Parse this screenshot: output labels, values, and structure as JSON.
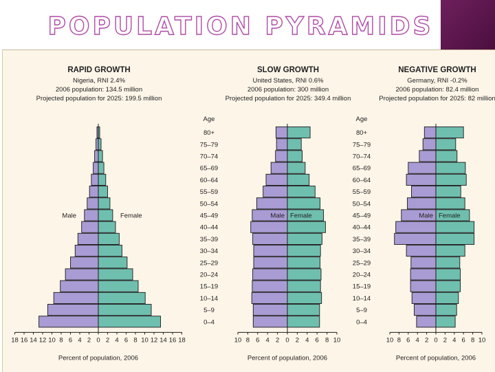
{
  "slide": {
    "title": "POPULATION PYRAMIDS",
    "colors": {
      "title_outline": "#b04ca6",
      "corner": "#5a1449",
      "background": "#fdf5e8"
    }
  },
  "chart_data": [
    {
      "type": "population-pyramid",
      "title": "RAPID GROWTH",
      "subtitle_lines": [
        "Nigeria, RNI 2.4%",
        "2006 population: 134.5 million",
        "Projected population for 2025: 199.5 million"
      ],
      "age_label": "Age",
      "age_groups": [
        "80+",
        "75–79",
        "70–74",
        "65–69",
        "60–64",
        "55–59",
        "50–54",
        "45–49",
        "40–44",
        "35–39",
        "30–34",
        "25–29",
        "20–24",
        "15–19",
        "10–14",
        "5–9",
        "0–4"
      ],
      "series": [
        {
          "name": "Male",
          "values": [
            0.3,
            0.5,
            0.8,
            1.1,
            1.5,
            1.9,
            2.4,
            3.0,
            3.6,
            4.4,
            5.0,
            6.0,
            7.1,
            8.2,
            9.6,
            10.9,
            12.8
          ],
          "color": "#a99bd3"
        },
        {
          "name": "Female",
          "values": [
            0.3,
            0.6,
            0.9,
            1.2,
            1.6,
            2.0,
            2.5,
            3.1,
            3.7,
            4.5,
            5.1,
            6.2,
            7.4,
            8.6,
            10.1,
            11.4,
            13.4
          ],
          "color": "#6fbfaf"
        }
      ],
      "x_ticks": [
        "18",
        "16",
        "14",
        "12",
        "10",
        "8",
        "6",
        "4",
        "2",
        "0",
        "2",
        "4",
        "6",
        "8",
        "10",
        "12",
        "14",
        "16",
        "18"
      ],
      "xlim": [
        -18,
        18
      ],
      "xlabel": "Percent of population, 2006",
      "male_label": "Male",
      "female_label": "Female"
    },
    {
      "type": "population-pyramid",
      "title": "SLOW GROWTH",
      "subtitle_lines": [
        "United States, RNI 0.6%",
        "2006 population: 300 million",
        "Projected population for 2025: 349.4 million"
      ],
      "age_label": "Age",
      "age_groups": [
        "80+",
        "75–79",
        "70–74",
        "65–69",
        "60–64",
        "55–59",
        "50–54",
        "45–49",
        "40–44",
        "35–39",
        "30–34",
        "25–29",
        "20–24",
        "15–19",
        "10–14",
        "5–9",
        "0–4"
      ],
      "series": [
        {
          "name": "Male",
          "values": [
            2.3,
            2.2,
            2.4,
            3.3,
            4.3,
            4.9,
            6.2,
            7.1,
            7.4,
            7.0,
            6.8,
            6.8,
            7.0,
            7.1,
            7.2,
            6.9,
            6.9
          ],
          "color": "#a99bd3"
        },
        {
          "name": "Female",
          "values": [
            4.6,
            2.8,
            3.0,
            3.6,
            4.4,
            5.6,
            6.6,
            7.3,
            7.7,
            7.0,
            6.7,
            6.6,
            6.8,
            6.7,
            6.9,
            6.5,
            6.5
          ],
          "color": "#6fbfaf"
        }
      ],
      "x_ticks": [
        "10",
        "8",
        "6",
        "4",
        "2",
        "0",
        "2",
        "4",
        "6",
        "8",
        "10"
      ],
      "xlim": [
        -10,
        10
      ],
      "xlabel": "Percent of population, 2006",
      "male_label": "Male",
      "female_label": "Female"
    },
    {
      "type": "population-pyramid",
      "title": "NEGATIVE GROWTH",
      "subtitle_lines": [
        "Germany, RNI -0.2%",
        "2006 population: 82.4 million",
        "Projected population for 2025: 82 million"
      ],
      "age_label": "Age",
      "age_groups": [
        "80+",
        "75–79",
        "70–74",
        "65–69",
        "60–64",
        "55–59",
        "50–54",
        "45–49",
        "40–44",
        "35–39",
        "30–34",
        "25–29",
        "20–24",
        "15–19",
        "10–14",
        "5–9",
        "0–4"
      ],
      "series": [
        {
          "name": "Male",
          "values": [
            2.5,
            2.8,
            3.6,
            6.0,
            6.4,
            5.3,
            6.2,
            7.5,
            8.7,
            9.0,
            6.4,
            5.4,
            5.5,
            5.5,
            5.2,
            4.7,
            4.2
          ],
          "color": "#a99bd3"
        },
        {
          "name": "Female",
          "values": [
            6.0,
            4.3,
            4.6,
            6.4,
            6.6,
            5.4,
            6.3,
            7.3,
            8.3,
            8.3,
            6.3,
            5.2,
            5.3,
            5.3,
            4.9,
            4.5,
            4.2
          ],
          "color": "#6fbfaf"
        }
      ],
      "x_ticks": [
        "10",
        "8",
        "6",
        "4",
        "2",
        "0",
        "2",
        "4",
        "6",
        "8",
        "10"
      ],
      "xlim": [
        -10,
        10
      ],
      "xlabel": "Percent of population, 2006",
      "male_label": "Male",
      "female_label": "Female"
    }
  ]
}
